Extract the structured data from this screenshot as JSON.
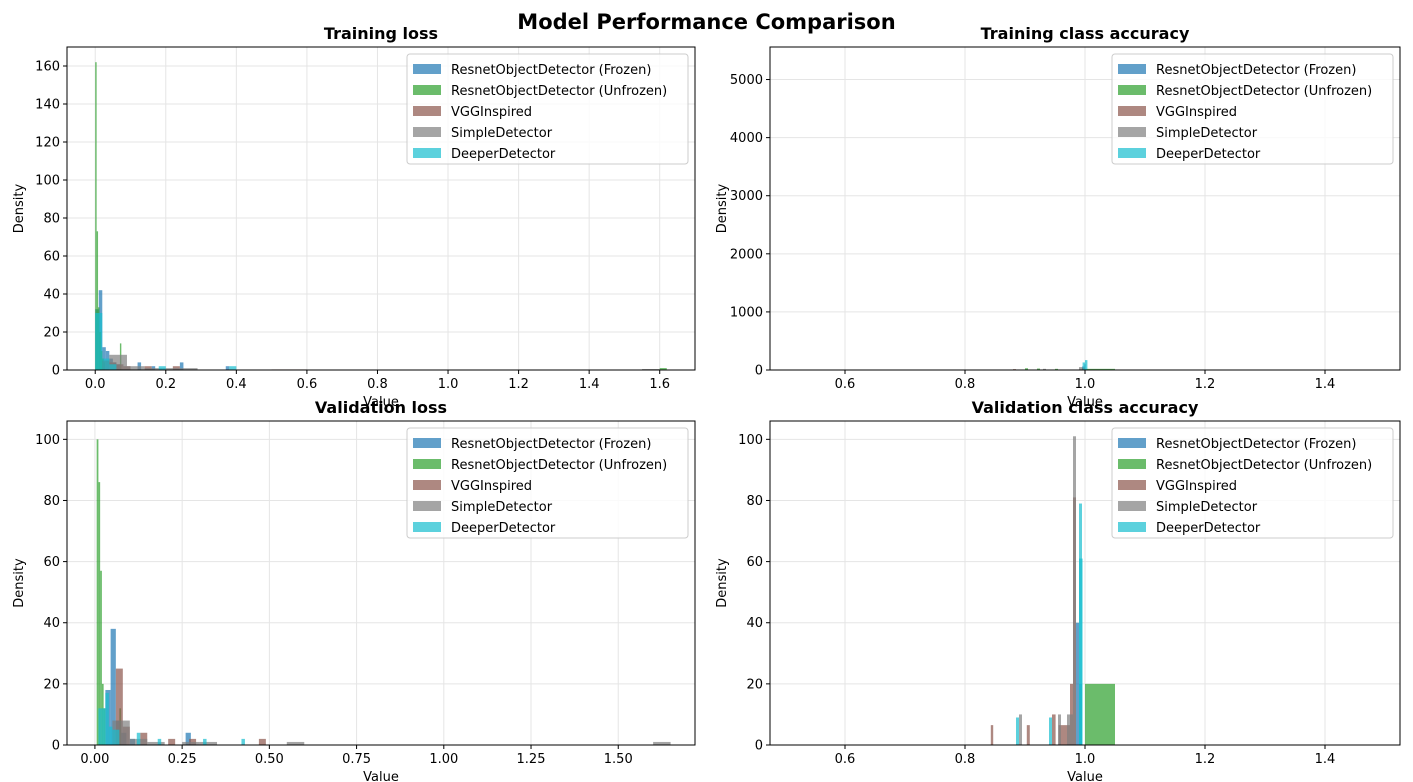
{
  "title": "Model Performance Comparison",
  "colors": {
    "ResnetObjectDetector (Frozen)": "#1f77b4",
    "ResnetObjectDetector (Unfrozen)": "#2ca02c",
    "VGGInspired": "#8c564b",
    "SimpleDetector": "#7f7f7f",
    "DeeperDetector": "#17becf"
  },
  "chart_data": [
    {
      "type": "histogram",
      "title": "Training loss",
      "xlabel": "Value",
      "ylabel": "Density",
      "xlim": [
        -0.08,
        1.7
      ],
      "ylim": [
        0,
        170
      ],
      "xticks": [
        0.0,
        0.2,
        0.4,
        0.6,
        0.8,
        1.0,
        1.2,
        1.4,
        1.6
      ],
      "xtick_labels": [
        "0.0",
        "0.2",
        "0.4",
        "0.6",
        "0.8",
        "1.0",
        "1.2",
        "1.4",
        "1.6"
      ],
      "yticks": [
        0,
        20,
        40,
        60,
        80,
        100,
        120,
        140,
        160
      ],
      "grid": true,
      "legend": "top-right",
      "series": [
        {
          "name": "ResnetObjectDetector (Frozen)",
          "bins": [
            [
              0.0,
              0.01,
              32
            ],
            [
              0.01,
              0.02,
              42
            ],
            [
              0.02,
              0.03,
              12
            ],
            [
              0.03,
              0.04,
              10
            ],
            [
              0.04,
              0.05,
              6
            ],
            [
              0.05,
              0.06,
              4
            ],
            [
              0.06,
              0.07,
              3
            ],
            [
              0.12,
              0.13,
              4
            ],
            [
              0.16,
              0.17,
              2
            ],
            [
              0.24,
              0.25,
              4
            ],
            [
              0.37,
              0.38,
              2
            ]
          ]
        },
        {
          "name": "ResnetObjectDetector (Unfrozen)",
          "bins": [
            [
              0.0,
              0.004,
              162
            ],
            [
              0.004,
              0.008,
              73
            ],
            [
              0.008,
              0.012,
              33
            ],
            [
              0.012,
              0.016,
              20
            ],
            [
              0.016,
              0.02,
              10
            ],
            [
              0.02,
              0.024,
              6
            ],
            [
              0.024,
              0.028,
              4
            ],
            [
              0.07,
              0.074,
              14
            ],
            [
              1.6,
              1.62,
              1
            ]
          ]
        },
        {
          "name": "VGGInspired",
          "bins": [
            [
              0.02,
              0.04,
              5
            ],
            [
              0.04,
              0.06,
              4
            ],
            [
              0.06,
              0.08,
              3
            ],
            [
              0.08,
              0.1,
              2
            ],
            [
              0.14,
              0.16,
              2
            ],
            [
              0.22,
              0.24,
              2
            ],
            [
              0.5,
              0.6,
              0.3
            ]
          ]
        },
        {
          "name": "SimpleDetector",
          "bins": [
            [
              0.04,
              0.09,
              8
            ],
            [
              0.09,
              0.14,
              2
            ],
            [
              0.14,
              0.19,
              1
            ],
            [
              0.19,
              0.24,
              1
            ],
            [
              0.24,
              0.29,
              1
            ],
            [
              1.55,
              1.6,
              0.5
            ]
          ]
        },
        {
          "name": "DeeperDetector",
          "bins": [
            [
              0.0,
              0.02,
              30
            ],
            [
              0.02,
              0.04,
              6
            ],
            [
              0.04,
              0.06,
              3
            ],
            [
              0.18,
              0.2,
              2
            ],
            [
              0.38,
              0.4,
              2
            ]
          ]
        }
      ]
    },
    {
      "type": "histogram",
      "title": "Training class accuracy",
      "xlabel": "Value",
      "ylabel": "Density",
      "xlim": [
        0.475,
        1.525
      ],
      "ylim": [
        0,
        5560
      ],
      "xticks": [
        0.6,
        0.8,
        1.0,
        1.2,
        1.4
      ],
      "xtick_labels": [
        "0.6",
        "0.8",
        "1.0",
        "1.2",
        "1.4"
      ],
      "yticks": [
        0,
        1000,
        2000,
        3000,
        4000,
        5000
      ],
      "grid": true,
      "legend": "top-right",
      "series": [
        {
          "name": "ResnetObjectDetector (Frozen)",
          "bins": [
            [
              0.995,
              0.999,
              60
            ],
            [
              0.999,
              1.001,
              100
            ]
          ]
        },
        {
          "name": "ResnetObjectDetector (Unfrozen)",
          "bins": [
            [
              0.9,
              0.905,
              30
            ],
            [
              0.92,
              0.925,
              25
            ],
            [
              0.95,
              0.955,
              20
            ],
            [
              0.999,
              1.05,
              20
            ]
          ]
        },
        {
          "name": "VGGInspired",
          "bins": [
            [
              0.88,
              0.885,
              15
            ],
            [
              0.995,
              1.0,
              40
            ]
          ]
        },
        {
          "name": "SimpleDetector",
          "bins": [
            [
              0.93,
              0.935,
              20
            ],
            [
              0.99,
              0.995,
              50
            ]
          ]
        },
        {
          "name": "DeeperDetector",
          "bins": [
            [
              0.996,
              1.0,
              130
            ],
            [
              1.0,
              1.004,
              170
            ]
          ]
        }
      ]
    },
    {
      "type": "histogram",
      "title": "Validation loss",
      "xlabel": "Value",
      "ylabel": "Density",
      "xlim": [
        -0.08,
        1.72
      ],
      "ylim": [
        0,
        106
      ],
      "xticks": [
        0.0,
        0.25,
        0.5,
        0.75,
        1.0,
        1.25,
        1.5
      ],
      "xtick_labels": [
        "0.00",
        "0.25",
        "0.50",
        "0.75",
        "1.00",
        "1.25",
        "1.50"
      ],
      "yticks": [
        0,
        20,
        40,
        60,
        80,
        100
      ],
      "grid": true,
      "legend": "top-right",
      "series": [
        {
          "name": "ResnetObjectDetector (Frozen)",
          "bins": [
            [
              0.03,
              0.045,
              18
            ],
            [
              0.045,
              0.06,
              38
            ],
            [
              0.06,
              0.075,
              8
            ],
            [
              0.075,
              0.09,
              4
            ],
            [
              0.1,
              0.115,
              2
            ],
            [
              0.26,
              0.275,
              4
            ]
          ]
        },
        {
          "name": "ResnetObjectDetector (Unfrozen)",
          "bins": [
            [
              0.005,
              0.01,
              100
            ],
            [
              0.01,
              0.015,
              86
            ],
            [
              0.015,
              0.02,
              57
            ],
            [
              0.02,
              0.025,
              20
            ],
            [
              0.025,
              0.03,
              12
            ],
            [
              0.07,
              0.075,
              12
            ]
          ]
        },
        {
          "name": "VGGInspired",
          "bins": [
            [
              0.06,
              0.08,
              25
            ],
            [
              0.08,
              0.1,
              6
            ],
            [
              0.13,
              0.15,
              4
            ],
            [
              0.21,
              0.23,
              2
            ],
            [
              0.27,
              0.29,
              2
            ],
            [
              0.47,
              0.49,
              2
            ]
          ]
        },
        {
          "name": "SimpleDetector",
          "bins": [
            [
              0.05,
              0.1,
              8
            ],
            [
              0.1,
              0.15,
              2
            ],
            [
              0.15,
              0.2,
              1
            ],
            [
              0.25,
              0.3,
              1
            ],
            [
              0.3,
              0.35,
              1
            ],
            [
              0.55,
              0.6,
              1
            ],
            [
              1.6,
              1.65,
              1
            ]
          ]
        },
        {
          "name": "DeeperDetector",
          "bins": [
            [
              0.01,
              0.02,
              12
            ],
            [
              0.02,
              0.03,
              12
            ],
            [
              0.03,
              0.04,
              17
            ],
            [
              0.04,
              0.05,
              6
            ],
            [
              0.05,
              0.06,
              5
            ],
            [
              0.06,
              0.07,
              5
            ],
            [
              0.12,
              0.13,
              4
            ],
            [
              0.18,
              0.19,
              2
            ],
            [
              0.31,
              0.32,
              2
            ],
            [
              0.42,
              0.43,
              2
            ]
          ]
        }
      ]
    },
    {
      "type": "histogram",
      "title": "Validation class accuracy",
      "xlabel": "Value",
      "ylabel": "Density",
      "xlim": [
        0.475,
        1.525
      ],
      "ylim": [
        0,
        106
      ],
      "xticks": [
        0.6,
        0.8,
        1.0,
        1.2,
        1.4
      ],
      "xtick_labels": [
        "0.6",
        "0.8",
        "1.0",
        "1.2",
        "1.4"
      ],
      "yticks": [
        0,
        20,
        40,
        60,
        80,
        100
      ],
      "grid": true,
      "legend": "top-right",
      "series": [
        {
          "name": "ResnetObjectDetector (Frozen)",
          "bins": [
            [
              0.985,
              0.99,
              40
            ],
            [
              0.99,
              0.995,
              20
            ]
          ]
        },
        {
          "name": "ResnetObjectDetector (Unfrozen)",
          "bins": [
            [
              1.0,
              1.05,
              20
            ]
          ]
        },
        {
          "name": "VGGInspired",
          "bins": [
            [
              0.843,
              0.847,
              6.5
            ],
            [
              0.903,
              0.908,
              6.5
            ],
            [
              0.945,
              0.951,
              10
            ],
            [
              0.956,
              0.975,
              6.5
            ],
            [
              0.975,
              0.98,
              20
            ],
            [
              0.98,
              0.985,
              81
            ]
          ]
        },
        {
          "name": "SimpleDetector",
          "bins": [
            [
              0.89,
              0.895,
              10
            ],
            [
              0.955,
              0.96,
              10
            ],
            [
              0.97,
              0.98,
              10
            ],
            [
              0.98,
              0.985,
              101
            ]
          ]
        },
        {
          "name": "DeeperDetector",
          "bins": [
            [
              0.885,
              0.89,
              9
            ],
            [
              0.94,
              0.945,
              9
            ],
            [
              0.99,
              0.995,
              79
            ],
            [
              0.99,
              0.996,
              61
            ]
          ]
        }
      ]
    }
  ]
}
